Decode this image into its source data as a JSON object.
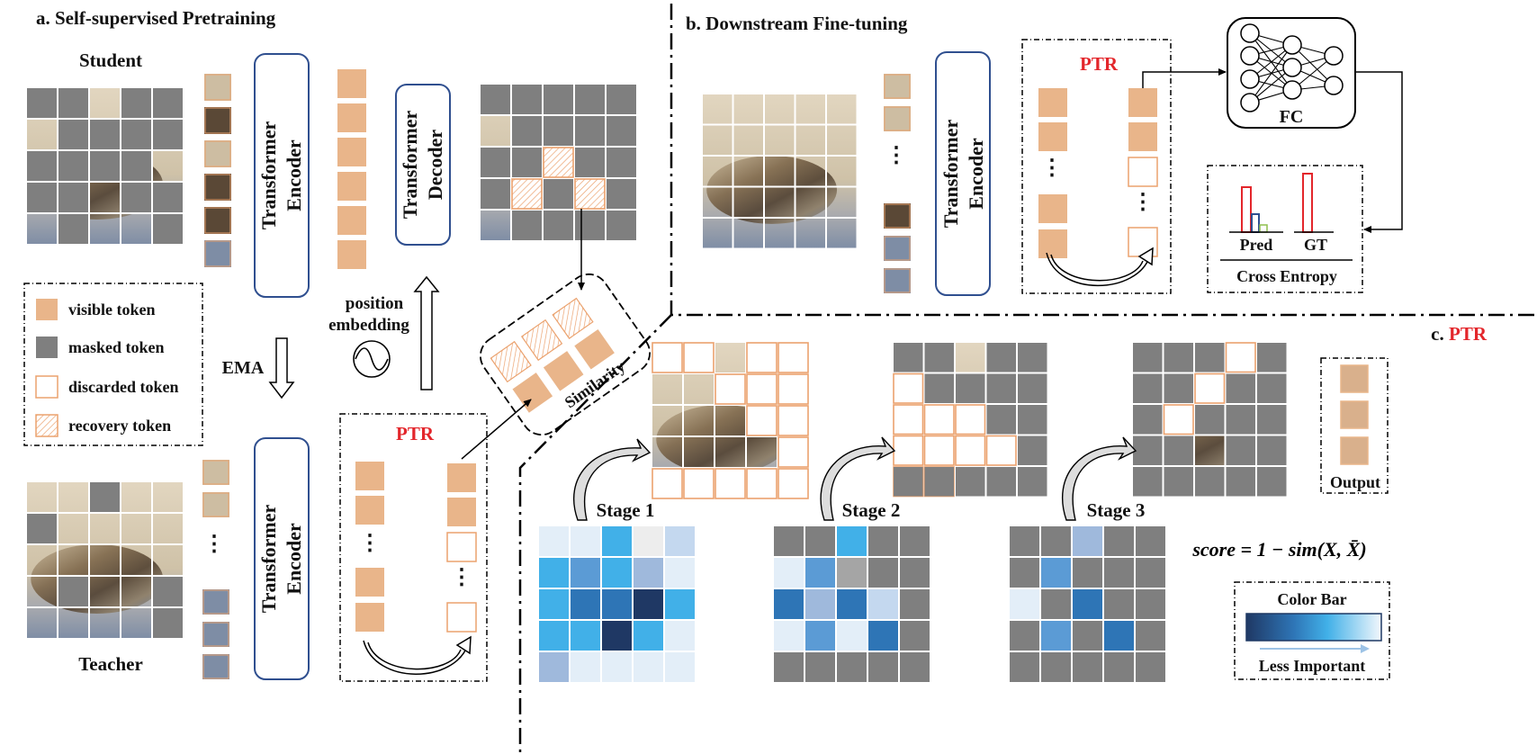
{
  "panel_a": {
    "title": "a. Self-supervised Pretraining",
    "student_label": "Student",
    "teacher_label": "Teacher",
    "encoder_line1": "Transformer",
    "encoder_line2": "Encoder",
    "decoder_line1": "Transformer",
    "decoder_line2": "Decoder",
    "position_line1": "position",
    "position_line2": "embedding",
    "ema_label": "EMA",
    "ptr_label": "PTR",
    "similarity_label": "Similarity",
    "legend": [
      {
        "label": "visible token",
        "kind": "visible"
      },
      {
        "label": "masked token",
        "kind": "masked"
      },
      {
        "label": "discarded token",
        "kind": "discarded"
      },
      {
        "label": "recovery token",
        "kind": "recovery"
      }
    ],
    "ellipsis": "⋮"
  },
  "panel_b": {
    "title": "b. Downstream Fine-tuning",
    "encoder_line1": "Transformer",
    "encoder_line2": "Encoder",
    "ptr_label": "PTR",
    "fc_label": "FC",
    "pred_label": "Pred",
    "gt_label": "GT",
    "loss_label": "Cross Entropy"
  },
  "panel_c": {
    "title_prefix": "c. ",
    "title_ptr": "PTR",
    "stages": [
      "Stage 1",
      "Stage 2",
      "Stage 3"
    ],
    "output_label": "Output",
    "score_formula": "score = 1 − sim(X, X̄)",
    "colorbar_title": "Color Bar",
    "colorbar_caption": "Less Important"
  },
  "colors": {
    "visible": "#E9B58A",
    "masked": "#7F7F7F",
    "discarded_border": "#EBA26E",
    "ptr_red": "#E3262B",
    "encoder_border": "#2F4F8F",
    "dark_blue": "#1F3864",
    "light_blue": "#E3EEF8"
  }
}
